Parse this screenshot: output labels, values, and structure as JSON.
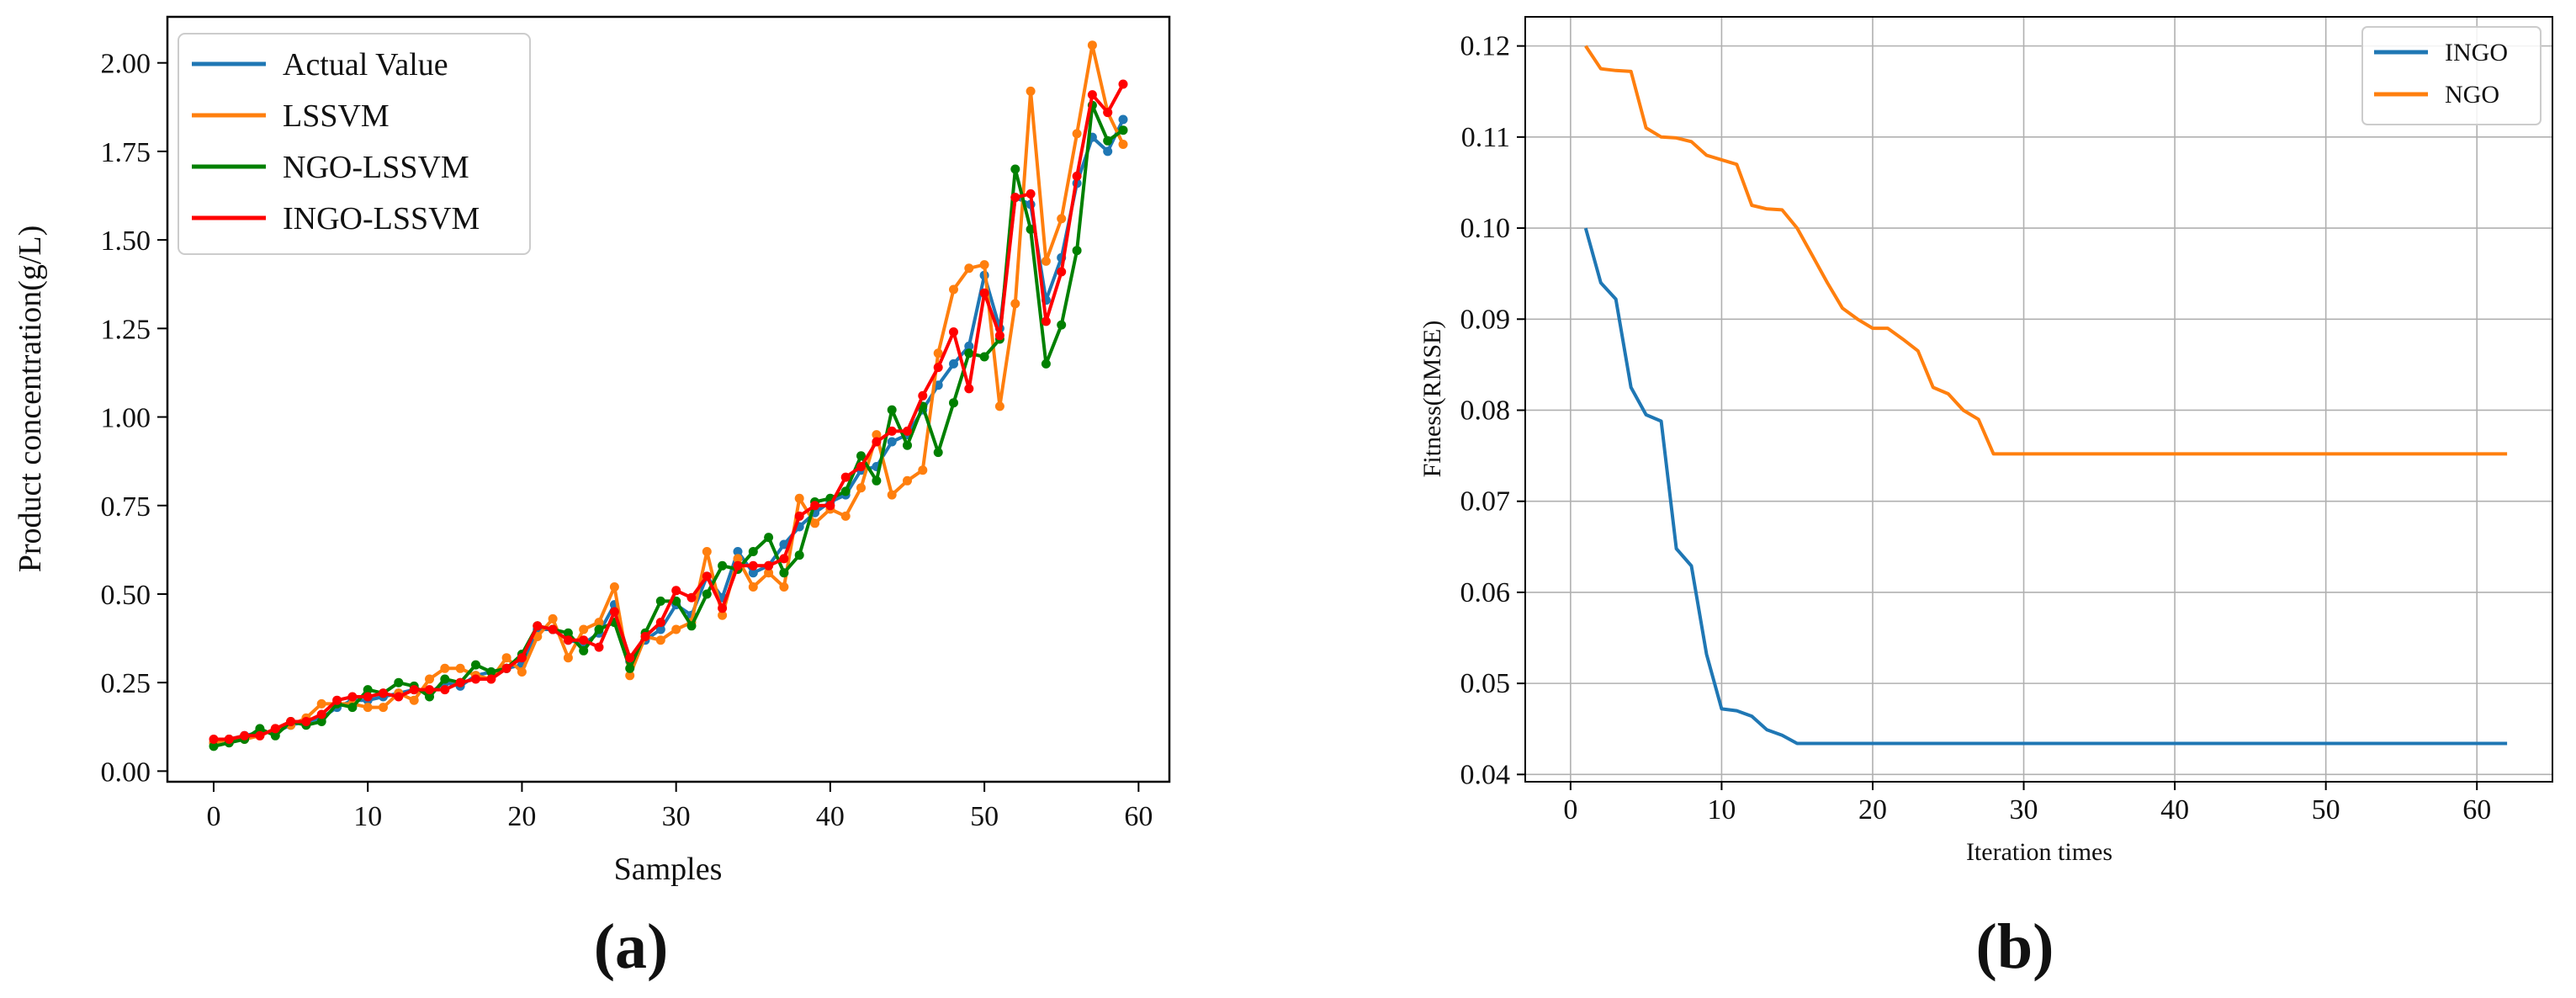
{
  "figure": {
    "panel_labels": [
      "(a)",
      "(b)"
    ]
  },
  "chart_data": [
    {
      "type": "line",
      "panel": "(a)",
      "title": "",
      "xlabel": "Samples",
      "ylabel": "Product concentration(g/L)",
      "xlim": [
        -3,
        62
      ],
      "ylim": [
        -0.03,
        2.13
      ],
      "xticks": [
        0,
        10,
        20,
        30,
        40,
        50,
        60
      ],
      "yticks": [
        0.0,
        0.25,
        0.5,
        0.75,
        1.0,
        1.25,
        1.5,
        1.75,
        2.0
      ],
      "ytick_labels": [
        "0.00",
        "0.25",
        "0.50",
        "0.75",
        "1.00",
        "1.25",
        "1.50",
        "1.75",
        "2.00"
      ],
      "grid": false,
      "legend_position": "top-left",
      "markers": true,
      "x": [
        0,
        1,
        2,
        3,
        4,
        5,
        6,
        7,
        8,
        9,
        10,
        11,
        12,
        13,
        14,
        15,
        16,
        17,
        18,
        19,
        20,
        21,
        22,
        23,
        24,
        25,
        26,
        27,
        28,
        29,
        30,
        31,
        32,
        33,
        34,
        35,
        36,
        37,
        38,
        39,
        40,
        41,
        42,
        43,
        44,
        45,
        46,
        47,
        48,
        49,
        50,
        51,
        52,
        53,
        54,
        55,
        56,
        57,
        58,
        59
      ],
      "series": [
        {
          "name": "Actual Value",
          "color": "#1f77b4",
          "values": [
            0.08,
            0.09,
            0.1,
            0.11,
            0.11,
            0.13,
            0.14,
            0.15,
            0.18,
            0.2,
            0.2,
            0.21,
            0.22,
            0.23,
            0.22,
            0.25,
            0.24,
            0.27,
            0.28,
            0.29,
            0.3,
            0.4,
            0.4,
            0.37,
            0.36,
            0.39,
            0.47,
            0.31,
            0.37,
            0.4,
            0.47,
            0.44,
            0.55,
            0.49,
            0.62,
            0.56,
            0.58,
            0.64,
            0.69,
            0.73,
            0.76,
            0.78,
            0.85,
            0.86,
            0.93,
            0.95,
            1.02,
            1.09,
            1.15,
            1.2,
            1.4,
            1.25,
            1.62,
            1.6,
            1.33,
            1.45,
            1.66,
            1.79,
            1.75,
            1.84
          ]
        },
        {
          "name": "LSSVM",
          "color": "#ff7f0e",
          "values": [
            0.08,
            0.09,
            0.09,
            0.1,
            0.12,
            0.13,
            0.15,
            0.19,
            0.19,
            0.19,
            0.18,
            0.18,
            0.22,
            0.2,
            0.26,
            0.29,
            0.29,
            0.27,
            0.26,
            0.32,
            0.28,
            0.38,
            0.43,
            0.32,
            0.4,
            0.42,
            0.52,
            0.27,
            0.38,
            0.37,
            0.4,
            0.42,
            0.62,
            0.44,
            0.6,
            0.52,
            0.56,
            0.52,
            0.77,
            0.7,
            0.74,
            0.72,
            0.8,
            0.95,
            0.78,
            0.82,
            0.85,
            1.18,
            1.36,
            1.42,
            1.43,
            1.03,
            1.32,
            1.92,
            1.44,
            1.56,
            1.8,
            2.05,
            1.86,
            1.77
          ]
        },
        {
          "name": "NGO-LSSVM",
          "color": "#008000",
          "values": [
            0.07,
            0.08,
            0.09,
            0.12,
            0.1,
            0.14,
            0.13,
            0.14,
            0.19,
            0.18,
            0.23,
            0.22,
            0.25,
            0.24,
            0.21,
            0.26,
            0.25,
            0.3,
            0.28,
            0.29,
            0.33,
            0.41,
            0.4,
            0.39,
            0.34,
            0.4,
            0.42,
            0.29,
            0.39,
            0.48,
            0.48,
            0.41,
            0.5,
            0.58,
            0.57,
            0.62,
            0.66,
            0.56,
            0.61,
            0.76,
            0.77,
            0.79,
            0.89,
            0.82,
            1.02,
            0.92,
            1.03,
            0.9,
            1.04,
            1.18,
            1.17,
            1.22,
            1.7,
            1.53,
            1.15,
            1.26,
            1.47,
            1.88,
            1.78,
            1.81
          ]
        },
        {
          "name": "INGO-LSSVM",
          "color": "#ff0000",
          "values": [
            0.09,
            0.09,
            0.1,
            0.1,
            0.12,
            0.14,
            0.14,
            0.16,
            0.2,
            0.21,
            0.21,
            0.22,
            0.21,
            0.23,
            0.23,
            0.23,
            0.25,
            0.26,
            0.26,
            0.29,
            0.32,
            0.41,
            0.4,
            0.37,
            0.37,
            0.35,
            0.45,
            0.32,
            0.38,
            0.42,
            0.51,
            0.49,
            0.55,
            0.46,
            0.58,
            0.58,
            0.58,
            0.6,
            0.72,
            0.75,
            0.75,
            0.83,
            0.86,
            0.93,
            0.96,
            0.96,
            1.06,
            1.14,
            1.24,
            1.08,
            1.35,
            1.23,
            1.62,
            1.63,
            1.27,
            1.41,
            1.68,
            1.91,
            1.86,
            1.94
          ]
        }
      ]
    },
    {
      "type": "line",
      "panel": "(b)",
      "title": "",
      "xlabel": "Iteration times",
      "ylabel": "Fitness(RMSE)",
      "xlim": [
        -3,
        65
      ],
      "ylim": [
        0.0392,
        0.1232
      ],
      "xticks": [
        0,
        10,
        20,
        30,
        40,
        50,
        60
      ],
      "yticks": [
        0.04,
        0.05,
        0.06,
        0.07,
        0.08,
        0.09,
        0.1,
        0.11,
        0.12
      ],
      "ytick_labels": [
        "0.04",
        "0.05",
        "0.06",
        "0.07",
        "0.08",
        "0.09",
        "0.10",
        "0.11",
        "0.12"
      ],
      "grid": true,
      "legend_position": "top-right",
      "series": [
        {
          "name": "INGO",
          "color": "#1f77b4",
          "x": [
            1,
            2,
            3,
            4,
            5,
            6,
            7,
            8,
            9,
            10,
            11,
            12,
            13,
            14,
            15,
            62
          ],
          "values": [
            0.1,
            0.094,
            0.0922,
            0.0825,
            0.0795,
            0.0788,
            0.0648,
            0.0629,
            0.0532,
            0.0472,
            0.047,
            0.0464,
            0.0449,
            0.0443,
            0.0434,
            0.0434
          ]
        },
        {
          "name": "NGO",
          "color": "#ff7f0e",
          "x": [
            1,
            2,
            3,
            4,
            5,
            6,
            7,
            8,
            9,
            10,
            11,
            12,
            13,
            14,
            15,
            16,
            17,
            18,
            19,
            20,
            21,
            22,
            23,
            24,
            25,
            26,
            27,
            28,
            62
          ],
          "values": [
            0.12,
            0.1175,
            0.1173,
            0.1172,
            0.111,
            0.11,
            0.1099,
            0.1095,
            0.108,
            0.1075,
            0.107,
            0.1025,
            0.1021,
            0.102,
            0.1,
            0.097,
            0.094,
            0.0912,
            0.09,
            0.089,
            0.089,
            0.0878,
            0.0865,
            0.0825,
            0.0818,
            0.08,
            0.079,
            0.0752,
            0.0752
          ]
        }
      ]
    }
  ]
}
